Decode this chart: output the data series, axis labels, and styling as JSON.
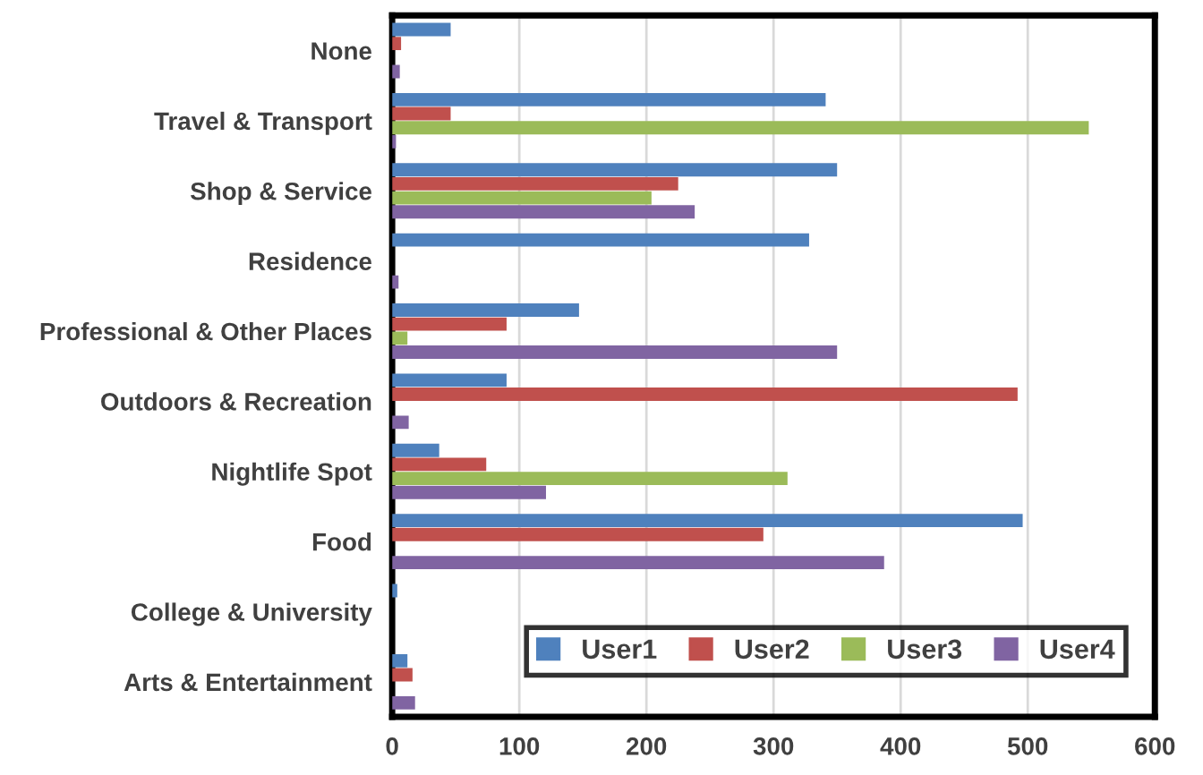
{
  "chart_data": {
    "type": "bar",
    "orientation": "horizontal",
    "categories": [
      "None",
      "Travel & Transport",
      "Shop & Service",
      "Residence",
      "Professional & Other Places",
      "Outdoors & Recreation",
      "Nightlife Spot",
      "Food",
      "College & University",
      "Arts & Entertainment"
    ],
    "series": [
      {
        "name": "User1",
        "color": "#4f81bd",
        "values": [
          46,
          341,
          350,
          328,
          147,
          90,
          37,
          496,
          4,
          12
        ]
      },
      {
        "name": "User2",
        "color": "#c0504d",
        "values": [
          7,
          46,
          225,
          0,
          90,
          492,
          74,
          292,
          0,
          16
        ]
      },
      {
        "name": "User3",
        "color": "#9bbb59",
        "values": [
          0,
          548,
          204,
          0,
          12,
          0,
          311,
          0,
          0,
          0
        ]
      },
      {
        "name": "User4",
        "color": "#8064a2",
        "values": [
          6,
          3,
          238,
          5,
          350,
          13,
          121,
          387,
          0,
          18
        ]
      }
    ],
    "xlim": [
      0,
      600
    ],
    "xticks": [
      0,
      100,
      200,
      300,
      400,
      500,
      600
    ],
    "grid": "x",
    "legend": "bottom right"
  }
}
